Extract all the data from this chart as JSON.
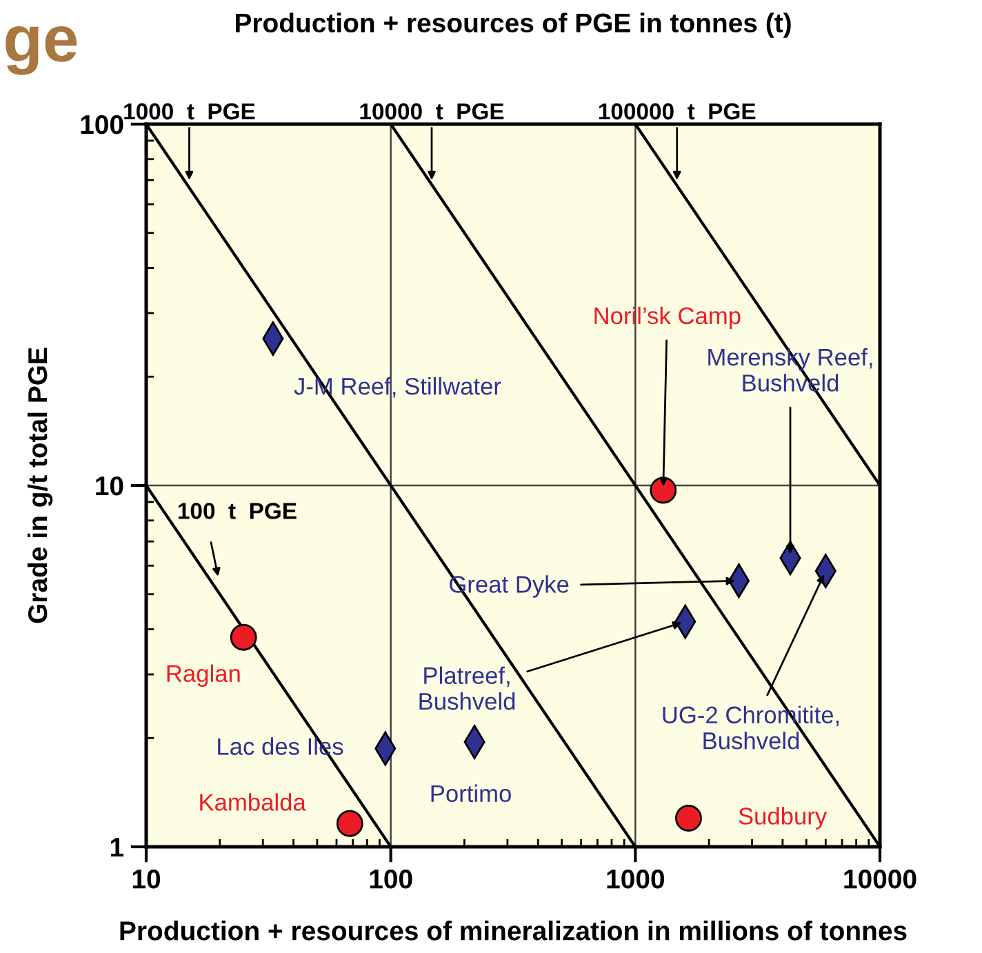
{
  "chart_data": {
    "type": "scatter",
    "title": "Production + resources of PGE in tonnes (t)",
    "xlabel": "Production + resources of mineralization in millions of tonnes",
    "ylabel": "Grade in g/t total PGE",
    "log": "xy",
    "xlim": [
      10,
      10000
    ],
    "ylim": [
      1,
      100
    ],
    "xticks": [
      10,
      100,
      1000,
      10000
    ],
    "yticks": [
      1,
      10,
      100
    ],
    "grid": true,
    "series": [
      {
        "type": "line",
        "color": "#000000",
        "marker": "none",
        "x": [
          10,
          100
        ],
        "values": [
          10,
          1
        ]
      },
      {
        "type": "line",
        "color": "#000000",
        "marker": "none",
        "x": [
          10,
          1000
        ],
        "values": [
          100,
          1
        ]
      },
      {
        "type": "line",
        "color": "#000000",
        "marker": "none",
        "x": [
          100,
          10000
        ],
        "values": [
          100,
          1
        ]
      },
      {
        "type": "line",
        "color": "#000000",
        "marker": "none",
        "x": [
          1000,
          10000
        ],
        "values": [
          100,
          10
        ]
      },
      {
        "color": "#ed1c24",
        "marker": "circle",
        "x": [
          1300,
          25,
          68,
          1650
        ],
        "values": [
          9.7,
          3.8,
          1.16,
          1.2
        ],
        "value_labels": [
          null,
          "Raglan",
          "Kambalda",
          "Sudbury"
        ]
      },
      {
        "color": "#2e3192",
        "marker": "diamond",
        "x": [
          33,
          95,
          220,
          1600,
          2650,
          4300,
          6000
        ],
        "values": [
          25.5,
          1.87,
          1.95,
          4.2,
          5.45,
          6.3,
          5.8
        ],
        "value_labels": [
          "J-M Reef, Stillwater",
          "Lac des Iles",
          "Portimo",
          null,
          null,
          null,
          null
        ]
      }
    ],
    "annotations": [
      "ge",
      "100  t  PGE",
      {
        "text": "1000  t  PGE",
        "x": 15,
        "y": 70
      },
      {
        "text": "10000  t  PGE",
        "x": 147,
        "y": 70
      },
      {
        "text": "100000  t  PGE",
        "x": 1480,
        "y": 70
      },
      {
        "text": "Noril’sk Camp",
        "x": 1300,
        "y": 9.7
      },
      {
        "text": "Platreef,\nBushveld",
        "x": 1600,
        "y": 4.2
      },
      {
        "text": "Great Dyke",
        "x": 2650,
        "y": 5.45
      },
      {
        "text": "Merensky Reef,\nBushveld",
        "x": 4300,
        "y": 6.3
      },
      {
        "text": "UG-2 Chromitite,\nBushveld",
        "x": 6000,
        "y": 5.8
      }
    ]
  }
}
